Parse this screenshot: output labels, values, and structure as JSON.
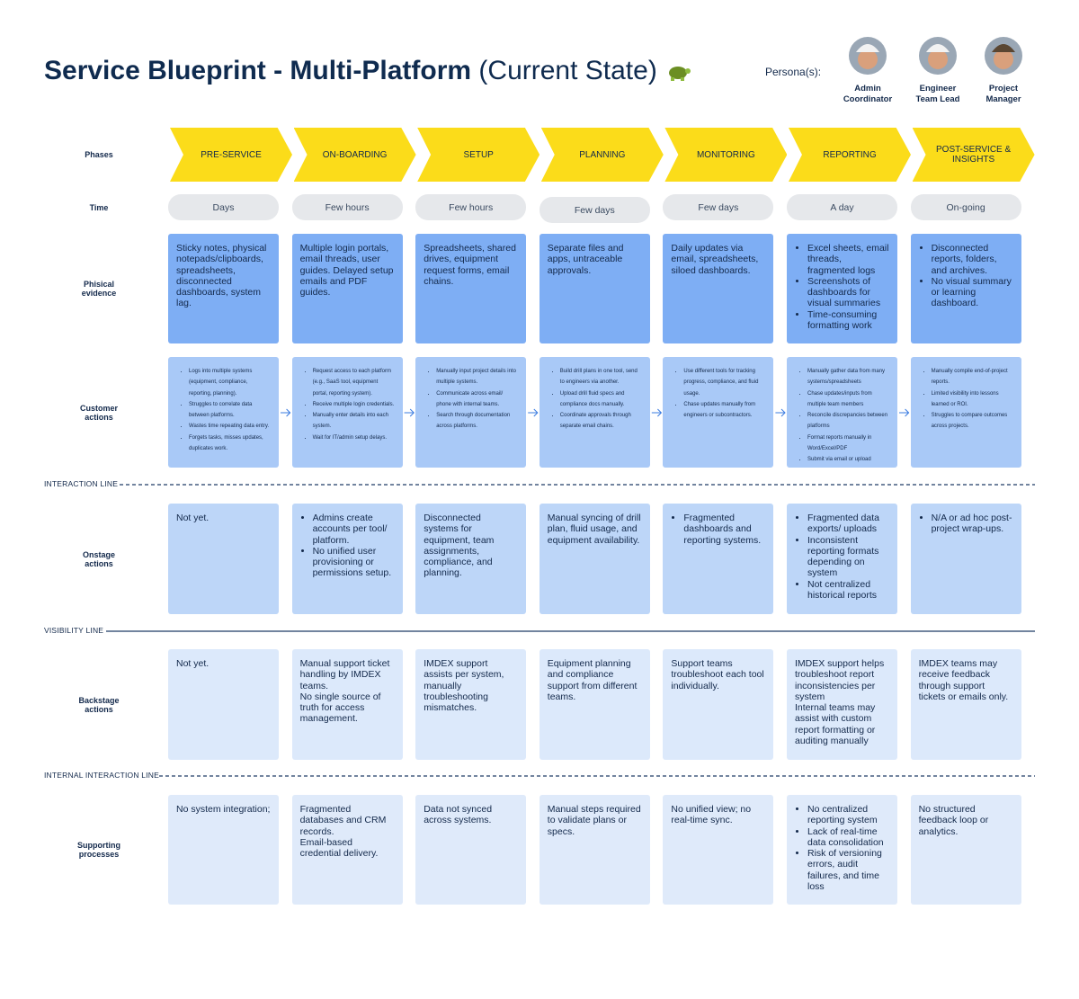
{
  "header": {
    "title": "Service Blueprint - Multi-Platform",
    "subtitle": "(Current State)",
    "persona_label": "Persona(s):",
    "personas": [
      "Admin Coordinator",
      "Engineer Team Lead",
      "Project Manager"
    ]
  },
  "lines": {
    "interaction": "INTERACTION LINE",
    "visibility": "VISIBILITY LINE",
    "internal_interaction": "INTERNAL INTERACTION LINE"
  },
  "phases": {
    "label": "Phases",
    "cells": [
      "PRE-SERVICE",
      "ON-BOARDING",
      "SETUP",
      "PLANNING",
      "MONITORING",
      "REPORTING",
      "POST-SERVICE & INSIGHTS"
    ]
  },
  "time": {
    "label": "Time",
    "cells": [
      "Days",
      "Few hours",
      "Few hours",
      "Few days",
      "Few days",
      "A day",
      "On-going"
    ]
  },
  "physical_evidence": {
    "label": "Phisical evidence",
    "cells": [
      "Sticky notes, physical notepads/clipboards, spreadsheets, disconnected dashboards, system lag.",
      "Multiple login portals, email threads, user guides. Delayed setup emails and PDF guides.",
      "Spreadsheets, shared drives, equipment request forms, email chains.",
      "Separate files and apps, untraceable approvals.",
      "Daily updates via email, spreadsheets, siloed dashboards.",
      [
        "Excel sheets, email threads, fragmented logs",
        "Screenshots of dashboards for visual summaries",
        "Time-consuming formatting work"
      ],
      [
        "Disconnected reports, folders, and archives.",
        "No visual summary or learning dashboard."
      ]
    ]
  },
  "customer_actions": {
    "label": "Customer actions",
    "cells": [
      [
        "Logs into multiple systems (equipment, compliance, reporting, planning).",
        "Struggles to correlate data between platforms.",
        "Wastes time repeating data entry.",
        "Forgets tasks, misses updates, duplicates work."
      ],
      [
        "Request access to each platform (e.g., SaaS tool, equipment portal, reporting system).",
        "Receive multiple login credentials.",
        "Manually enter details into each system.",
        "Wait for IT/admin setup delays."
      ],
      [
        "Manually input project details into multiple systems.",
        "Communicate across email/ phone with internal teams.",
        "Search through documentation across platforms."
      ],
      [
        "Build drill plans in one tool, send to engineers via another.",
        "Upload drill fluid specs and compliance docs manually.",
        "Coordinate approvals through separate email chains."
      ],
      [
        "Use different tools for tracking progress, compliance, and fluid usage.",
        "Chase updates manually from engineers or subcontractors."
      ],
      [
        "Manually gather data from many systems/spreadsheets",
        "Chase updates/inputs from multiple team members",
        "Reconcile discrepancies between platforms",
        "Format reports manually in Word/Excel/PDF",
        "Submit via email or upload"
      ],
      [
        "Manually compile end-of-project reports.",
        "Limited visibility into lessons learned or ROI.",
        "Struggles to compare outcomes across projects."
      ]
    ]
  },
  "onstage_actions": {
    "label": "Onstage actions",
    "cells": [
      "Not yet.",
      [
        "Admins create accounts per tool/ platform.",
        "No unified user provisioning or permissions setup."
      ],
      "Disconnected systems for equipment, team assignments, compliance, and planning.",
      "Manual syncing of drill plan, fluid usage, and equipment availability.",
      [
        "Fragmented dashboards and reporting systems."
      ],
      [
        "Fragmented data exports/ uploads",
        "Inconsistent reporting formats depending on system",
        "Not centralized historical reports"
      ],
      [
        "N/A or ad hoc post-project wrap-ups."
      ]
    ]
  },
  "backstage_actions": {
    "label": "Backstage actions",
    "cells": [
      "Not yet.",
      "Manual support ticket handling by IMDEX teams.\nNo single source of truth for access management.",
      "IMDEX support assists per system, manually troubleshooting mismatches.",
      "Equipment planning and compliance support from different teams.",
      "Support teams troubleshoot each tool individually.",
      "IMDEX support helps troubleshoot report inconsistencies per system\nInternal teams may assist with custom report formatting or auditing manually",
      "IMDEX teams may receive feedback through support tickets or emails only."
    ]
  },
  "supporting_processes": {
    "label": "Supporting processes",
    "cells": [
      "No system integration;",
      "Fragmented databases and CRM records.\nEmail-based credential delivery.",
      "Data not synced across systems.",
      "Manual steps required to validate plans or specs.",
      "No unified view; no real-time sync.",
      [
        "No centralized reporting system",
        "Lack of real-time data consolidation",
        "Risk of versioning errors, audit failures, and time loss"
      ],
      "No structured feedback loop or analytics."
    ]
  }
}
